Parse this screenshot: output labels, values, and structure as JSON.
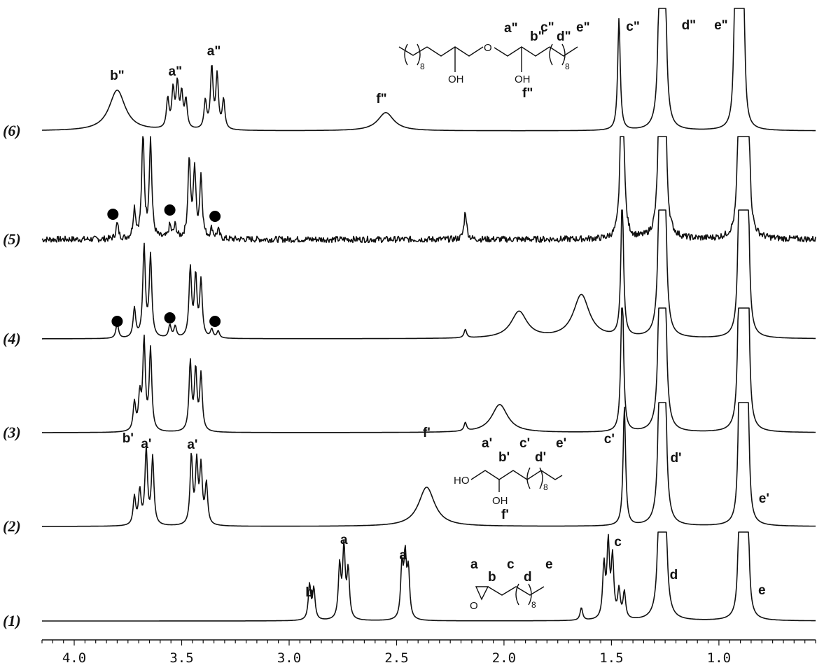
{
  "chart_data": {
    "type": "line",
    "x_axis": {
      "range": [
        4.15,
        0.55
      ],
      "reversed": true,
      "tick_labels": [
        "4.0",
        "3.5",
        "3.0",
        "2.5",
        "2.0",
        "1.5",
        "1.0"
      ]
    },
    "grid": false,
    "spectra": [
      {
        "id": "1",
        "label": "(1)",
        "peaks": [
          {
            "ppm": 2.905,
            "h": 50
          },
          {
            "ppm": 2.885,
            "h": 44
          },
          {
            "ppm": 2.765,
            "h": 75
          },
          {
            "ppm": 2.745,
            "h": 100
          },
          {
            "ppm": 2.725,
            "h": 68
          },
          {
            "ppm": 2.475,
            "h": 74
          },
          {
            "ppm": 2.46,
            "h": 84
          },
          {
            "ppm": 2.445,
            "h": 66
          },
          {
            "ppm": 1.64,
            "h": 18
          },
          {
            "ppm": 1.535,
            "h": 75
          },
          {
            "ppm": 1.515,
            "h": 105
          },
          {
            "ppm": 1.495,
            "h": 85
          },
          {
            "ppm": 1.465,
            "h": 40
          },
          {
            "ppm": 1.44,
            "h": 38
          },
          {
            "ppm": 1.272,
            "h": 430
          },
          {
            "ppm": 1.255,
            "h": 430
          },
          {
            "ppm": 0.905,
            "h": 130
          },
          {
            "ppm": 0.885,
            "h": 430
          },
          {
            "ppm": 0.865,
            "h": 120
          }
        ],
        "annotations": [
          {
            "text": "b",
            "ppm": 2.905
          },
          {
            "text": "a",
            "ppm": 2.745
          },
          {
            "text": "a",
            "ppm": 2.47
          },
          {
            "text": "c",
            "ppm": 1.47
          },
          {
            "text": "d",
            "ppm": 1.21
          },
          {
            "text": "e",
            "ppm": 0.8
          }
        ]
      },
      {
        "id": "2",
        "label": "(2)",
        "peaks": [
          {
            "ppm": 3.72,
            "h": 40
          },
          {
            "ppm": 3.695,
            "h": 48
          },
          {
            "ppm": 3.665,
            "h": 108
          },
          {
            "ppm": 3.635,
            "h": 96
          },
          {
            "ppm": 3.455,
            "h": 98
          },
          {
            "ppm": 3.43,
            "h": 86
          },
          {
            "ppm": 3.41,
            "h": 80
          },
          {
            "ppm": 3.385,
            "h": 58
          },
          {
            "ppm": 2.36,
            "h": 56
          },
          {
            "ppm": 1.44,
            "h": 170
          },
          {
            "ppm": 1.272,
            "h": 430
          },
          {
            "ppm": 1.255,
            "h": 430
          },
          {
            "ppm": 0.905,
            "h": 170
          },
          {
            "ppm": 0.885,
            "h": 430
          },
          {
            "ppm": 0.865,
            "h": 160
          }
        ],
        "annotations": [
          {
            "text": "b'",
            "ppm": 3.75
          },
          {
            "text": "a'",
            "ppm": 3.665
          },
          {
            "text": "a'",
            "ppm": 3.45
          },
          {
            "text": "f'",
            "ppm": 2.36
          },
          {
            "text": "c'",
            "ppm": 1.51
          },
          {
            "text": "d'",
            "ppm": 1.2
          },
          {
            "text": "e'",
            "ppm": 0.79
          }
        ]
      },
      {
        "id": "3",
        "label": "(3)",
        "peaks": [
          {
            "ppm": 3.72,
            "h": 40
          },
          {
            "ppm": 3.695,
            "h": 48
          },
          {
            "ppm": 3.675,
            "h": 128
          },
          {
            "ppm": 3.645,
            "h": 116
          },
          {
            "ppm": 3.46,
            "h": 98
          },
          {
            "ppm": 3.435,
            "h": 86
          },
          {
            "ppm": 3.41,
            "h": 80
          },
          {
            "ppm": 2.18,
            "h": 12
          },
          {
            "ppm": 2.02,
            "h": 40
          },
          {
            "ppm": 1.45,
            "h": 220
          },
          {
            "ppm": 1.272,
            "h": 430
          },
          {
            "ppm": 1.255,
            "h": 430
          },
          {
            "ppm": 0.905,
            "h": 240
          },
          {
            "ppm": 0.885,
            "h": 430
          },
          {
            "ppm": 0.865,
            "h": 230
          }
        ],
        "annotations": []
      },
      {
        "id": "4",
        "label": "(4)",
        "peaks": [
          {
            "ppm": 3.8,
            "h": 22
          },
          {
            "ppm": 3.72,
            "h": 42
          },
          {
            "ppm": 3.675,
            "h": 130
          },
          {
            "ppm": 3.645,
            "h": 116
          },
          {
            "ppm": 3.555,
            "h": 18
          },
          {
            "ppm": 3.53,
            "h": 16
          },
          {
            "ppm": 3.46,
            "h": 98
          },
          {
            "ppm": 3.435,
            "h": 86
          },
          {
            "ppm": 3.41,
            "h": 80
          },
          {
            "ppm": 3.36,
            "h": 12
          },
          {
            "ppm": 3.33,
            "h": 10
          },
          {
            "ppm": 2.18,
            "h": 12
          },
          {
            "ppm": 1.93,
            "h": 38
          },
          {
            "ppm": 1.64,
            "h": 62
          },
          {
            "ppm": 1.45,
            "h": 205
          },
          {
            "ppm": 1.272,
            "h": 430
          },
          {
            "ppm": 1.255,
            "h": 430
          },
          {
            "ppm": 0.905,
            "h": 210
          },
          {
            "ppm": 0.885,
            "h": 430
          },
          {
            "ppm": 0.865,
            "h": 205
          }
        ],
        "annotations": [
          {
            "text": "●",
            "ppm": 3.8
          },
          {
            "text": "●",
            "ppm": 3.555
          },
          {
            "text": "●",
            "ppm": 3.345
          }
        ]
      },
      {
        "id": "5",
        "label": "(5)",
        "noisy": true,
        "peaks": [
          {
            "ppm": 3.8,
            "h": 22
          },
          {
            "ppm": 3.72,
            "h": 42
          },
          {
            "ppm": 3.68,
            "h": 150
          },
          {
            "ppm": 3.645,
            "h": 140
          },
          {
            "ppm": 3.555,
            "h": 18
          },
          {
            "ppm": 3.53,
            "h": 18
          },
          {
            "ppm": 3.465,
            "h": 112
          },
          {
            "ppm": 3.44,
            "h": 98
          },
          {
            "ppm": 3.41,
            "h": 88
          },
          {
            "ppm": 3.36,
            "h": 14
          },
          {
            "ppm": 3.33,
            "h": 12
          },
          {
            "ppm": 2.18,
            "h": 40
          },
          {
            "ppm": 1.45,
            "h": 400
          },
          {
            "ppm": 1.272,
            "h": 430
          },
          {
            "ppm": 1.255,
            "h": 430
          },
          {
            "ppm": 0.905,
            "h": 260
          },
          {
            "ppm": 0.885,
            "h": 430
          },
          {
            "ppm": 0.865,
            "h": 255
          }
        ],
        "annotations": [
          {
            "text": "●",
            "ppm": 3.82
          },
          {
            "text": "●",
            "ppm": 3.555
          },
          {
            "text": "●",
            "ppm": 3.345
          }
        ]
      },
      {
        "id": "6",
        "label": "(6)",
        "peaks": [
          {
            "ppm": 3.8,
            "h": 58
          },
          {
            "ppm": 3.565,
            "h": 42
          },
          {
            "ppm": 3.54,
            "h": 54
          },
          {
            "ppm": 3.52,
            "h": 62
          },
          {
            "ppm": 3.5,
            "h": 48
          },
          {
            "ppm": 3.48,
            "h": 40
          },
          {
            "ppm": 3.39,
            "h": 40
          },
          {
            "ppm": 3.36,
            "h": 88
          },
          {
            "ppm": 3.335,
            "h": 76
          },
          {
            "ppm": 3.305,
            "h": 42
          },
          {
            "ppm": 2.55,
            "h": 26
          },
          {
            "ppm": 1.465,
            "h": 160
          },
          {
            "ppm": 1.272,
            "h": 430
          },
          {
            "ppm": 1.255,
            "h": 430
          },
          {
            "ppm": 0.925,
            "h": 170
          },
          {
            "ppm": 0.905,
            "h": 430
          },
          {
            "ppm": 0.885,
            "h": 165
          }
        ],
        "annotations": [
          {
            "text": "b\"",
            "ppm": 3.8
          },
          {
            "text": "a\"",
            "ppm": 3.53
          },
          {
            "text": "a\"",
            "ppm": 3.35
          },
          {
            "text": "f\"",
            "ppm": 2.57
          },
          {
            "text": "c\"",
            "ppm": 1.4
          },
          {
            "text": "d\"",
            "ppm": 1.14
          },
          {
            "text": "e\"",
            "ppm": 0.99
          }
        ]
      }
    ],
    "structures": {
      "s1": {
        "labels": [
          "a",
          "b",
          "c",
          "d",
          "e"
        ],
        "subscript": "8",
        "atoms": [
          "O"
        ]
      },
      "s2": {
        "labels": [
          "a'",
          "b'",
          "c'",
          "d'",
          "e'",
          "f'"
        ],
        "subscript": "8",
        "atoms": [
          "HO",
          "OH"
        ]
      },
      "s6": {
        "labels": [
          "a\"",
          "b\"",
          "c\"",
          "d\"",
          "e\"",
          "f\""
        ],
        "subscript": "8",
        "atoms": [
          "O",
          "OH",
          "OH"
        ]
      }
    }
  }
}
